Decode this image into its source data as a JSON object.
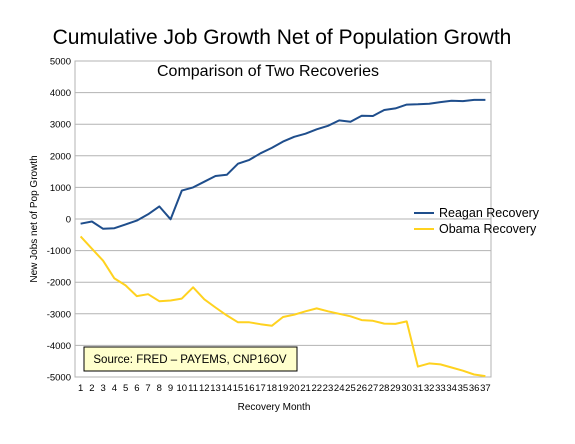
{
  "chart_data": {
    "type": "line",
    "title": "Cumulative Job Growth Net of Population Growth",
    "subtitle": "Comparison of Two Recoveries",
    "xlabel": "Recovery Month",
    "ylabel": "New Jobs net of Pop Growth",
    "ylim": [
      -5000,
      5000
    ],
    "yticks": [
      -5000,
      -4000,
      -3000,
      -2000,
      -1000,
      0,
      1000,
      2000,
      3000,
      4000,
      5000
    ],
    "x": [
      1,
      2,
      3,
      4,
      5,
      6,
      7,
      8,
      9,
      10,
      11,
      12,
      13,
      14,
      15,
      16,
      17,
      18,
      19,
      20,
      21,
      22,
      23,
      24,
      25,
      26,
      27,
      28,
      29,
      30,
      31,
      32,
      33,
      34,
      35,
      36,
      37
    ],
    "grid": "horizontal",
    "legend": "right",
    "series": [
      {
        "name": "Reagan Recovery",
        "color": "#1f4e8c",
        "values": [
          -150,
          -80,
          -310,
          -290,
          -170,
          -50,
          150,
          400,
          -10,
          900,
          1000,
          1180,
          1360,
          1400,
          1750,
          1870,
          2080,
          2250,
          2450,
          2600,
          2700,
          2840,
          2950,
          3120,
          3080,
          3270,
          3260,
          3450,
          3500,
          3620,
          3630,
          3650,
          3700,
          3740,
          3730,
          3770,
          3770
        ]
      },
      {
        "name": "Obama Recovery",
        "color": "#ffd21f",
        "values": [
          -550,
          -940,
          -1320,
          -1880,
          -2100,
          -2440,
          -2380,
          -2600,
          -2580,
          -2520,
          -2160,
          -2540,
          -2800,
          -3050,
          -3270,
          -3270,
          -3330,
          -3380,
          -3100,
          -3030,
          -2920,
          -2830,
          -2920,
          -3000,
          -3080,
          -3200,
          -3220,
          -3310,
          -3320,
          -3240,
          -4670,
          -4570,
          -4600,
          -4700,
          -4800,
          -4920,
          -4970
        ]
      }
    ],
    "annotation": "Source: FRED – PAYEMS, CNP16OV"
  }
}
